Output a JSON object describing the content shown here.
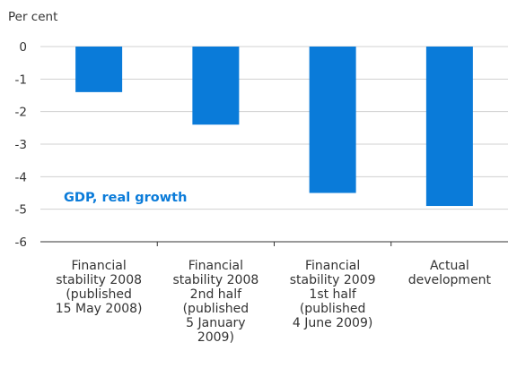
{
  "chart_data": {
    "type": "bar",
    "unit_label": "Per cent",
    "series_label": "GDP, real growth",
    "categories": [
      [
        "Financial",
        "stability 2008",
        "(published",
        "15 May 2008)"
      ],
      [
        "Financial",
        "stability 2008",
        "2nd half",
        "(published",
        "5 January",
        "2009)"
      ],
      [
        "Financial",
        "stability 2009",
        "1st half",
        "(published",
        "4 June 2009)"
      ],
      [
        "Actual",
        "development"
      ]
    ],
    "values": [
      -1.4,
      -2.4,
      -4.5,
      -4.9
    ],
    "ylim": [
      -6,
      0
    ],
    "yticks": [
      "0",
      "-1",
      "-2",
      "-3",
      "-4",
      "-5",
      "-6"
    ],
    "grid": true,
    "colors": {
      "bar": "#0a7bd9",
      "label": "#0a7bd9",
      "grid": "#d0d0d0",
      "axis": "#333333",
      "text": "#333333"
    }
  }
}
